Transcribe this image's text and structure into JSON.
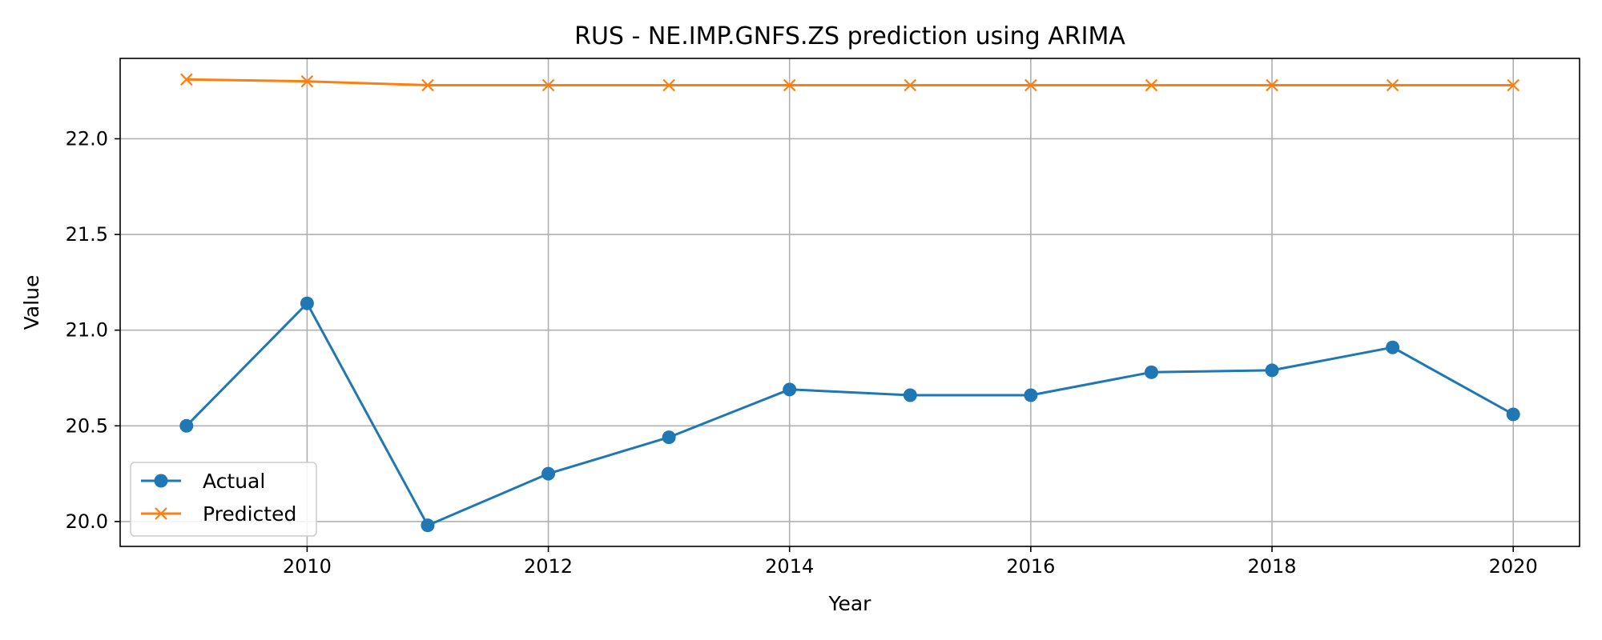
{
  "chart_data": {
    "type": "line",
    "title": "RUS - NE.IMP.GNFS.ZS prediction using ARIMA",
    "xlabel": "Year",
    "ylabel": "Value",
    "x": [
      2009,
      2010,
      2011,
      2012,
      2013,
      2014,
      2015,
      2016,
      2017,
      2018,
      2019,
      2020
    ],
    "xlim": [
      2008.45,
      2020.55
    ],
    "ylim": [
      19.87,
      22.42
    ],
    "xticks": [
      2010,
      2012,
      2014,
      2016,
      2018,
      2020
    ],
    "yticks": [
      20.0,
      20.5,
      21.0,
      21.5,
      22.0
    ],
    "ytick_labels": [
      "20.0",
      "20.5",
      "21.0",
      "21.5",
      "22.0"
    ],
    "grid": true,
    "legend_position": "lower-left",
    "series": [
      {
        "name": "Actual",
        "color": "#1f77b4",
        "marker": "circle",
        "values": [
          20.5,
          21.14,
          19.98,
          20.25,
          20.44,
          20.69,
          20.66,
          20.66,
          20.78,
          20.79,
          20.91,
          20.56
        ]
      },
      {
        "name": "Predicted",
        "color": "#ff7f0e",
        "marker": "x",
        "values": [
          22.31,
          22.3,
          22.28,
          22.28,
          22.28,
          22.28,
          22.28,
          22.28,
          22.28,
          22.28,
          22.28,
          22.28
        ]
      }
    ]
  }
}
